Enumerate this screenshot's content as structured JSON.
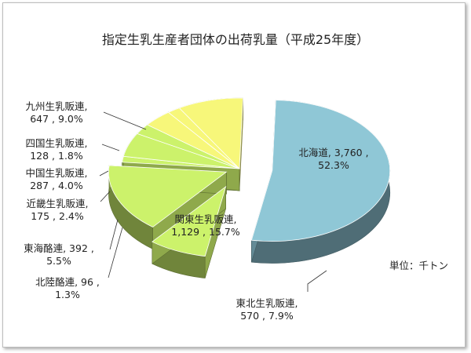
{
  "chart_data": {
    "type": "pie",
    "title": "指定生乳生産者団体の出荷乳量（平成25年度）",
    "unit_label": "単位：千トン",
    "slices": [
      {
        "name": "北海道",
        "value": 3760,
        "percent": 52.3,
        "label_line1": "北海道, 3,760 ,",
        "label_line2": "52.3%",
        "color": "#8fc7d6"
      },
      {
        "name": "東北生乳販連",
        "value": 570,
        "percent": 7.9,
        "label_line1": "東北生乳販連,",
        "label_line2": "570 , 7.9%",
        "color": "#ccf26b"
      },
      {
        "name": "関東生乳販連",
        "value": 1129,
        "percent": 15.7,
        "label_line1": "関東生乳販連,",
        "label_line2": "1,129 , 15.7%",
        "color": "#ccf26b"
      },
      {
        "name": "北陸酪連",
        "value": 96,
        "percent": 1.3,
        "label_line1": "北陸酪連, 96 ,",
        "label_line2": "1.3%",
        "color": "#ccf26b"
      },
      {
        "name": "東海酪連",
        "value": 392,
        "percent": 5.5,
        "label_line1": "東海酪連, 392 ,",
        "label_line2": "5.5%",
        "color": "#ccf26b"
      },
      {
        "name": "近畿生乳販連",
        "value": 175,
        "percent": 2.4,
        "label_line1": "近畿生乳販連,",
        "label_line2": "175 , 2.4%",
        "color": "#ccf26b"
      },
      {
        "name": "中国生乳販連",
        "value": 287,
        "percent": 4.0,
        "label_line1": "中国生乳販連,",
        "label_line2": "287 , 4.0%",
        "color": "#f7f77a"
      },
      {
        "name": "四国生乳販連",
        "value": 128,
        "percent": 1.8,
        "label_line1": "四国生乳販連,",
        "label_line2": "128 , 1.8%",
        "color": "#f7f77a"
      },
      {
        "name": "九州生乳販連",
        "value": 647,
        "percent": 9.0,
        "label_line1": "九州生乳販連,",
        "label_line2": "647 , 9.0%",
        "color": "#f7f77a"
      }
    ]
  }
}
